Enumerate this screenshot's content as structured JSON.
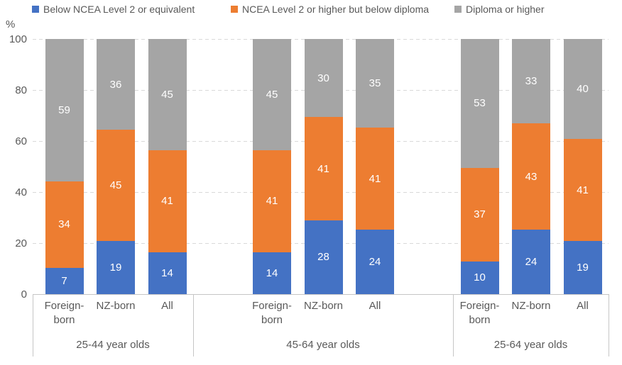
{
  "chart_data": {
    "type": "bar",
    "stacked": true,
    "title": "",
    "ylabel": "%",
    "xlabel": "",
    "ylim": [
      0,
      100
    ],
    "yticks": [
      0,
      20,
      40,
      60,
      80,
      100
    ],
    "grid": "horizontal-dashed",
    "legend_position": "top",
    "colors": {
      "series_blue": "#4472C4",
      "series_orange": "#ED7D31",
      "series_gray": "#A5A5A5",
      "text": "#595959",
      "gridline": "#D9D9D9",
      "axis_line": "#C6C6C6",
      "value_label": "#FFFFFF"
    },
    "series": [
      {
        "name": "Below NCEA Level 2 or equivalent",
        "color": "#4472C4"
      },
      {
        "name": "NCEA Level 2 or higher but below diploma",
        "color": "#ED7D31"
      },
      {
        "name": "Diploma or higher",
        "color": "#A5A5A5"
      }
    ],
    "groups": [
      {
        "label": "25-44 year olds",
        "bars": [
          {
            "category": "Foreign-born",
            "values": [
              7,
              34,
              59
            ]
          },
          {
            "category": "NZ-born",
            "values": [
              19,
              45,
              36
            ]
          },
          {
            "category": "All",
            "values": [
              14,
              41,
              45
            ]
          }
        ]
      },
      {
        "label": "45-64 year olds",
        "bars": [
          {
            "category": "Foreign-born",
            "values": [
              14,
              41,
              45
            ]
          },
          {
            "category": "NZ-born",
            "values": [
              28,
              41,
              30
            ]
          },
          {
            "category": "All",
            "values": [
              24,
              41,
              35
            ]
          }
        ]
      },
      {
        "label": "25-64 year olds",
        "bars": [
          {
            "category": "Foreign-born",
            "values": [
              10,
              37,
              53
            ]
          },
          {
            "category": "NZ-born",
            "values": [
              24,
              43,
              33
            ]
          },
          {
            "category": "All",
            "values": [
              19,
              41,
              40
            ]
          }
        ]
      }
    ]
  }
}
